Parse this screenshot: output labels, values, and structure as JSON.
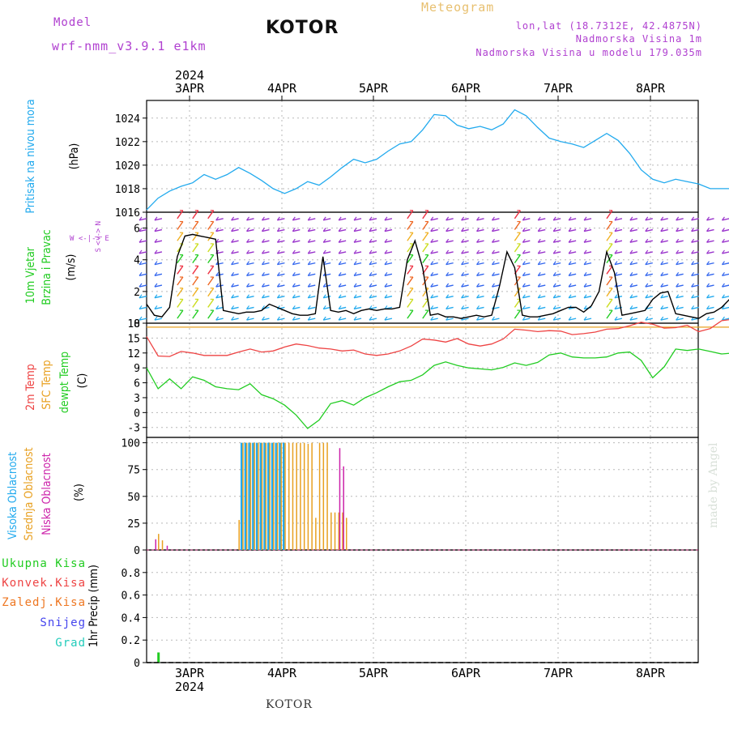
{
  "header": {
    "model_label": "Model",
    "model_name": "wrf-nmm_v3.9.1 e1km",
    "title": "KOTOR",
    "meteogram": "Meteogram",
    "location": "lon,lat (18.7312E, 42.4875N)",
    "elevation": "Nadmorska Visina 1m",
    "model_elevation": "Nadmorska Visina u modelu 179.035m"
  },
  "footer": {
    "name": "KOTOR",
    "watermark": "made by Angel"
  },
  "colors": {
    "pressure": "#22aaee",
    "wind_speed": "#000000",
    "temp2m": "#ee4444",
    "sfc_temp": "#e8a020",
    "dewpoint": "#22cc22",
    "cloud_high": "#22aaee",
    "cloud_mid": "#e8a020",
    "cloud_low": "#cc22aa",
    "precip_total": "#22cc22"
  },
  "chart_data": [
    {
      "type": "line",
      "name": "pressure",
      "ylabel": "(hPa)",
      "side_label": "Pritisak na nivou mora",
      "ylim": [
        1016,
        1025.5
      ],
      "yticks": [
        1016,
        1018,
        1020,
        1022,
        1024
      ],
      "x_top_labels": [
        "3APR",
        "4APR",
        "5APR",
        "6APR",
        "7APR",
        "8APR"
      ],
      "x_top_year": "2024",
      "grid": true,
      "x_hours": [
        0,
        3,
        6,
        9,
        12,
        15,
        18,
        21,
        24,
        27,
        30,
        33,
        36,
        39,
        42,
        45,
        48,
        51,
        54,
        57,
        60,
        63,
        66,
        69,
        72,
        75,
        78,
        81,
        84,
        87,
        90,
        93,
        96,
        99,
        102,
        105,
        108,
        111,
        114,
        117,
        120,
        123,
        126,
        129,
        132,
        135,
        138,
        141,
        144,
        147,
        150,
        153,
        156,
        159,
        162,
        165,
        168,
        171,
        174,
        177
      ],
      "series": [
        {
          "values": [
            1016.2,
            1017.2,
            1017.8,
            1018.2,
            1018.5,
            1019.2,
            1018.8,
            1019.2,
            1019.8,
            1019.3,
            1018.7,
            1018.0,
            1017.6,
            1018.0,
            1018.6,
            1018.3,
            1019.0,
            1019.8,
            1020.5,
            1020.2,
            1020.5,
            1021.2,
            1021.8,
            1022.0,
            1023.0,
            1024.3,
            1024.2,
            1023.4,
            1023.1,
            1023.3,
            1023.0,
            1023.5,
            1024.7,
            1024.2,
            1023.2,
            1022.3,
            1022.0,
            1021.8,
            1021.5,
            1022.1,
            1022.7,
            1022.1,
            1021.0,
            1019.6,
            1018.8,
            1018.5,
            1018.8,
            1018.6,
            1018.4,
            1018.0,
            1018.0,
            1018.0,
            1018.0,
            1018.0,
            1018.0,
            1018.0,
            1018.0,
            1018.0,
            1018.0,
            1018.0
          ]
        }
      ]
    },
    {
      "type": "line",
      "name": "wind",
      "ylabel": "(m/s)",
      "side_label_1": "10m Vjetar",
      "side_label_2": "Brzina i Pravac",
      "compass_ns": "S <-|-> N",
      "compass_we": "W <-|-> E",
      "ylim": [
        0,
        7
      ],
      "yticks": [
        0,
        2,
        4,
        6
      ],
      "grid": true,
      "x_hours": [
        0,
        2,
        4,
        6,
        8,
        10,
        12,
        14,
        16,
        18,
        20,
        22,
        24,
        26,
        28,
        30,
        32,
        34,
        36,
        38,
        40,
        42,
        44,
        46,
        48,
        50,
        52,
        54,
        56,
        58,
        60,
        62,
        64,
        66,
        68,
        70,
        72,
        74,
        76,
        78,
        80,
        82,
        84,
        86,
        88,
        90,
        92,
        94,
        96,
        98,
        100,
        102,
        104,
        106,
        108,
        110,
        112,
        114,
        116,
        118,
        120,
        122,
        124,
        126,
        128,
        130,
        132,
        134,
        136,
        138,
        140,
        142,
        144,
        146,
        148,
        150,
        152,
        154,
        156,
        158,
        160,
        162,
        164,
        166,
        168,
        170,
        172,
        174,
        176,
        178
      ],
      "series": [
        {
          "name": "speed",
          "values": [
            1.2,
            0.5,
            0.4,
            1.0,
            4.2,
            5.5,
            5.6,
            5.5,
            5.4,
            5.3,
            0.8,
            0.7,
            0.6,
            0.7,
            0.7,
            0.8,
            1.2,
            1.0,
            0.8,
            0.6,
            0.5,
            0.5,
            0.6,
            4.2,
            0.8,
            0.7,
            0.8,
            0.6,
            0.8,
            0.9,
            0.8,
            0.9,
            0.9,
            1.0,
            4.0,
            5.2,
            3.5,
            0.5,
            0.6,
            0.4,
            0.4,
            0.3,
            0.4,
            0.5,
            0.4,
            0.5,
            2.3,
            4.5,
            3.5,
            0.5,
            0.4,
            0.4,
            0.5,
            0.6,
            0.8,
            1.0,
            1.0,
            0.7,
            1.1,
            2.0,
            4.5,
            3.2,
            0.5,
            0.6,
            0.7,
            0.8,
            1.5,
            1.9,
            2.0,
            0.6,
            0.5,
            0.4,
            0.3,
            0.6,
            0.7,
            1.0,
            1.5,
            2.0,
            2.5,
            4.8,
            5.2,
            4.5,
            2.0,
            0.7,
            0.6,
            0.8,
            0.6,
            0.6,
            0.5,
            0.6
          ]
        }
      ]
    },
    {
      "type": "line",
      "name": "temperature",
      "ylabel": "(C)",
      "side_label_1": "2m Temp",
      "side_label_2": "SFC Temp",
      "side_label_3": "dewpt Temp",
      "ylim": [
        -5,
        18
      ],
      "yticks": [
        -3,
        0,
        3,
        6,
        9,
        12,
        15,
        18
      ],
      "grid": true,
      "x_hours": [
        0,
        3,
        6,
        9,
        12,
        15,
        18,
        21,
        24,
        27,
        30,
        33,
        36,
        39,
        42,
        45,
        48,
        51,
        54,
        57,
        60,
        63,
        66,
        69,
        72,
        75,
        78,
        81,
        84,
        87,
        90,
        93,
        96,
        99,
        102,
        105,
        108,
        111,
        114,
        117,
        120,
        123,
        126,
        129,
        132,
        135,
        138,
        141,
        144,
        147,
        150,
        153,
        156,
        159,
        162,
        165,
        168,
        171,
        174,
        177
      ],
      "series": [
        {
          "name": "2m Temp",
          "values": [
            15.3,
            11.4,
            11.3,
            12.3,
            12.0,
            11.5,
            11.5,
            11.5,
            12.2,
            12.8,
            12.2,
            12.4,
            13.2,
            13.8,
            13.5,
            13.0,
            12.8,
            12.4,
            12.6,
            11.8,
            11.5,
            11.8,
            12.4,
            13.4,
            14.8,
            14.6,
            14.2,
            14.9,
            13.8,
            13.4,
            13.8,
            14.8,
            16.8,
            16.6,
            16.3,
            16.5,
            16.4,
            15.7,
            15.9,
            16.2,
            16.8,
            16.9,
            17.5,
            18.2,
            17.8,
            17.0,
            17.1,
            17.6,
            16.3,
            16.9,
            18.5,
            18.8,
            18.5,
            18.1,
            18.2,
            18.3,
            18.4,
            18.2,
            18.0,
            18.2
          ]
        },
        {
          "name": "SFC Temp",
          "values": [
            17.2,
            17.2,
            17.2,
            17.2,
            17.2,
            17.2,
            17.2,
            17.2,
            17.2,
            17.2,
            17.2,
            17.2,
            17.2,
            17.2,
            17.2,
            17.2,
            17.2,
            17.2,
            17.2,
            17.2,
            17.2,
            17.2,
            17.2,
            17.2,
            17.2,
            17.2,
            17.2,
            17.2,
            17.2,
            17.2,
            17.2,
            17.2,
            17.2,
            17.2,
            17.2,
            17.2,
            17.2,
            17.2,
            17.2,
            17.2,
            17.2,
            17.2,
            17.2,
            17.2,
            17.2,
            17.2,
            17.2,
            17.2,
            17.2,
            17.2,
            17.2,
            17.2,
            17.2,
            17.2,
            17.2,
            17.2,
            17.2,
            17.2,
            17.2,
            17.2
          ]
        },
        {
          "name": "dewpt Temp",
          "values": [
            9.0,
            4.8,
            6.8,
            4.8,
            7.2,
            6.5,
            5.2,
            4.8,
            4.6,
            5.8,
            3.6,
            2.8,
            1.5,
            -0.5,
            -3.2,
            -1.5,
            1.8,
            2.4,
            1.5,
            3.0,
            4.0,
            5.2,
            6.2,
            6.5,
            7.6,
            9.5,
            10.2,
            9.5,
            9.0,
            8.8,
            8.6,
            9.1,
            10.0,
            9.5,
            10.1,
            11.6,
            12.0,
            11.2,
            11.0,
            11.0,
            11.2,
            12.0,
            12.2,
            10.5,
            7.0,
            9.2,
            12.8,
            12.5,
            12.8,
            12.3,
            11.8,
            12.0,
            13.5,
            15.2,
            14.0,
            12.0,
            11.0,
            10.0,
            9.0,
            7.5
          ]
        }
      ]
    },
    {
      "type": "bar",
      "name": "clouds",
      "ylabel": "(%)",
      "side_label_1": "Visoka Oblacnost",
      "side_label_2": "Srednja Oblacnost",
      "side_label_3": "Niska Oblacnost",
      "ylim": [
        0,
        105
      ],
      "yticks": [
        0,
        25,
        50,
        75,
        100
      ],
      "grid": true,
      "series": [
        {
          "name": "Visoka Oblacnost",
          "x_hours": [
            25,
            26,
            27,
            28,
            29,
            30,
            31,
            32,
            33,
            34,
            35,
            36
          ],
          "values": [
            100,
            100,
            100,
            100,
            100,
            100,
            100,
            100,
            100,
            100,
            100,
            100
          ]
        },
        {
          "name": "Srednja Oblacnost",
          "x_hours": [
            3,
            4,
            24,
            25,
            26,
            27,
            28,
            29,
            30,
            31,
            32,
            33,
            34,
            35,
            36,
            37,
            38,
            39,
            40,
            41,
            42,
            43,
            44,
            45,
            46,
            47,
            48,
            49,
            50,
            51,
            52
          ],
          "values": [
            15,
            9,
            28,
            100,
            100,
            100,
            100,
            100,
            100,
            100,
            100,
            100,
            100,
            100,
            100,
            100,
            100,
            100,
            100,
            100,
            99,
            100,
            30,
            100,
            100,
            100,
            35,
            35,
            35,
            35,
            30
          ]
        },
        {
          "name": "Niska Oblacnost",
          "x_hours": [
            2,
            5,
            50,
            51
          ],
          "values": [
            10,
            4,
            95,
            78
          ]
        }
      ]
    },
    {
      "type": "bar",
      "name": "precip",
      "ylabel": "1hr Precip (mm)",
      "legend": [
        "Ukupna Kisa",
        "Konvek.Kisa",
        "Zaledj.Kisa",
        "Snijeg",
        "Grad"
      ],
      "legend_colors": [
        "#22cc22",
        "#ee4444",
        "#ee7722",
        "#4444ee",
        "#22ccbb"
      ],
      "ylim": [
        0,
        1
      ],
      "yticks": [
        0,
        0.2,
        0.4,
        0.6,
        0.8
      ],
      "x_bottom_labels": [
        "3APR",
        "4APR",
        "5APR",
        "6APR",
        "7APR",
        "8APR"
      ],
      "x_bottom_year": "2024",
      "grid": true,
      "series": [
        {
          "name": "Ukupna Kisa",
          "x_hours": [
            3
          ],
          "values": [
            0.09
          ]
        }
      ]
    }
  ]
}
